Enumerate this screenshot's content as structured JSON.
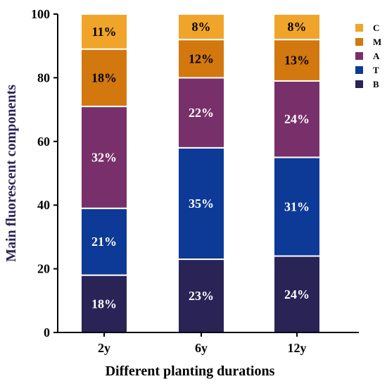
{
  "chart_data": {
    "type": "bar",
    "stacked": true,
    "categories": [
      "2y",
      "6y",
      "12y"
    ],
    "xlabel": "Different planting durations",
    "ylabel": "Main fluorescent components",
    "ylim": [
      0,
      100
    ],
    "yticks": [
      0,
      20,
      40,
      60,
      80,
      100
    ],
    "legend_position": "top-right",
    "series": [
      {
        "name": "B",
        "color": "#2a2356",
        "values": [
          18,
          23,
          24
        ],
        "labels": [
          "18%",
          "23%",
          "24%"
        ]
      },
      {
        "name": "T",
        "color": "#0d3a96",
        "values": [
          21,
          35,
          31
        ],
        "labels": [
          "21%",
          "35%",
          "31%"
        ]
      },
      {
        "name": "A",
        "color": "#78306a",
        "values": [
          32,
          22,
          24
        ],
        "labels": [
          "32%",
          "22%",
          "24%"
        ]
      },
      {
        "name": "M",
        "color": "#d2780f",
        "values": [
          18,
          12,
          13
        ],
        "labels": [
          "18%",
          "12%",
          "13%"
        ]
      },
      {
        "name": "C",
        "color": "#f0a52a",
        "values": [
          11,
          8,
          8
        ],
        "labels": [
          "11%",
          "8%",
          "8%"
        ]
      }
    ],
    "legend_order": [
      "C",
      "M",
      "A",
      "T",
      "B"
    ],
    "label_colors": {
      "light": "#ffffff",
      "dark": "#000000"
    },
    "ylabel_color": "#2a2356",
    "xlabel_color": "#000000"
  }
}
